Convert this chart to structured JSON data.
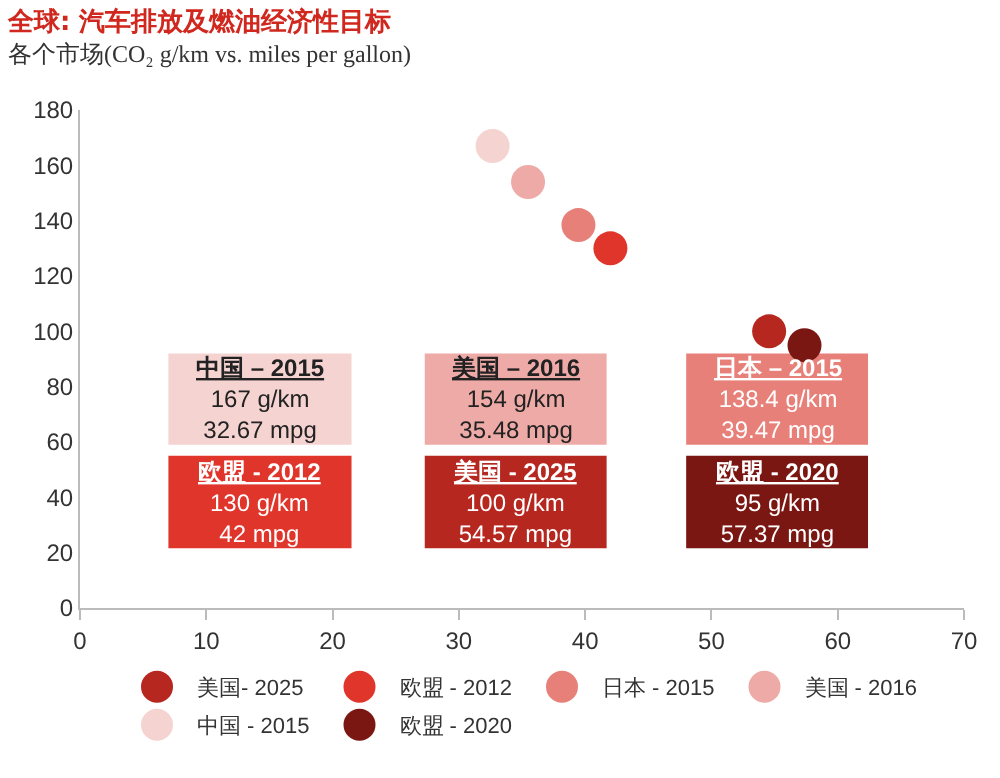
{
  "chart_data": {
    "type": "scatter",
    "title": "全球: 汽车排放及燃油经济性目标",
    "subtitle": "各个市场(CO₂ g/km vs. miles per gallon)",
    "series": [
      {
        "name": "美国- 2025",
        "color": "#b5271f",
        "x": [
          54.57
        ],
        "values": [
          100
        ]
      },
      {
        "name": "欧盟 - 2012",
        "color": "#e0352b",
        "x": [
          42
        ],
        "values": [
          130
        ]
      },
      {
        "name": "日本 - 2015",
        "color": "#e8807a",
        "x": [
          39.47
        ],
        "values": [
          138.4
        ]
      },
      {
        "name": "美国 - 2016",
        "color": "#eeaaa6",
        "x": [
          35.48
        ],
        "values": [
          154
        ]
      },
      {
        "name": "中国 - 2015",
        "color": "#f5d3d1",
        "x": [
          32.67
        ],
        "values": [
          167
        ]
      },
      {
        "name": "欧盟 - 2020",
        "color": "#7a1712",
        "x": [
          57.37
        ],
        "values": [
          95
        ]
      }
    ],
    "annotations": [
      "美国 - 2025\n100 g/km\n54.57 mpg",
      "欧盟 - 2012\n130 g/km\n42 mpg",
      "日本 – 2015\n138.4 g/km\n39.47 mpg",
      "美国 – 2016\n154 g/km\n35.48 mpg",
      "中国 – 2015\n167 g/km\n32.67 mpg",
      "欧盟 - 2020\n95 g/km\n57.37 mpg"
    ],
    "xlim": [
      0,
      70
    ],
    "xticks": [
      0,
      10,
      20,
      30,
      40,
      50,
      60,
      70
    ],
    "ylim": [
      0,
      180
    ],
    "yticks": [
      0,
      20,
      40,
      60,
      80,
      100,
      120,
      140,
      160,
      180
    ],
    "grid": false,
    "legend": "bottom",
    "marker": "circle"
  }
}
